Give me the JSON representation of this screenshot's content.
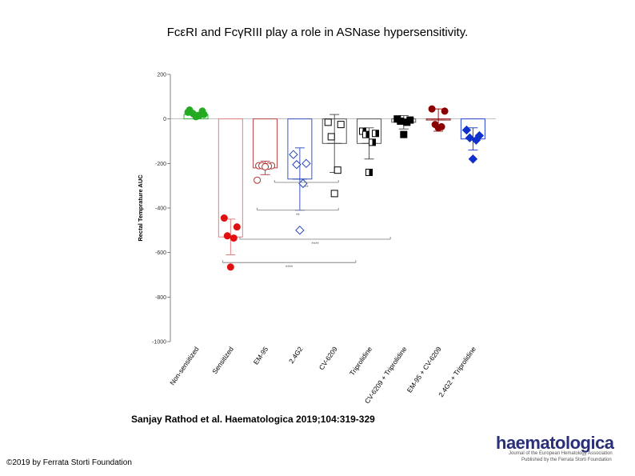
{
  "title": "FcεRI and FcγRIII play a role in ASNase hypersensitivity.",
  "citation": "Sanjay Rathod et al. Haematologica 2019;104:319-329",
  "copyright": "©2019 by Ferrata Storti Foundation",
  "logo": {
    "wordmark": "haematologica",
    "subtitle1": "Journal of the European Hematology Association",
    "subtitle2": "Published by the Ferrata Storti Foundation"
  },
  "chart_data": {
    "type": "scatter",
    "title": "",
    "xlabel": "",
    "ylabel": "Rectal Temprature AUC",
    "ylim": [
      -1000,
      200
    ],
    "yticks": [
      200,
      0,
      -200,
      -400,
      -600,
      -800,
      -1000
    ],
    "categories": [
      "Non-sensitized",
      "Sensitized",
      "EM-95",
      "2.4G2",
      "CV-6209",
      "Triprolidine",
      "CV-6209 + Triprolidine",
      "EM-95 + CV-6209",
      "2.4G2 + Triprolidine"
    ],
    "groups": [
      {
        "name": "Non-sensitized",
        "color": "#22aa22",
        "marker": "circle",
        "filled": true,
        "mean": 20,
        "err": 10,
        "points": [
          40,
          35,
          25,
          15,
          10,
          30,
          20
        ]
      },
      {
        "name": "Sensitized",
        "color": "#e01010",
        "marker": "circle",
        "filled": true,
        "mean": -530,
        "err": 80,
        "points": [
          -445,
          -485,
          -525,
          -535,
          -665
        ]
      },
      {
        "name": "EM-95",
        "color": "#b03030",
        "marker": "circle",
        "filled": false,
        "mean": -220,
        "err": 30,
        "points": [
          -210,
          -210,
          -210,
          -212,
          -215,
          -275
        ]
      },
      {
        "name": "2.4G2",
        "color": "#2244bb",
        "marker": "diamond",
        "filled": false,
        "mean": -270,
        "err": 140,
        "points": [
          -160,
          -200,
          -205,
          -290,
          -500
        ]
      },
      {
        "name": "CV-6209",
        "color": "#000000",
        "marker": "square",
        "filled": false,
        "mean": -110,
        "err": 130,
        "points": [
          -15,
          -25,
          -80,
          -230,
          -335
        ]
      },
      {
        "name": "Triprolidine",
        "color": "#000000",
        "marker": "square-half",
        "filled": true,
        "mean": -110,
        "err": 70,
        "points": [
          -55,
          -65,
          -70,
          -105,
          -240
        ]
      },
      {
        "name": "CV-6209 + Triprolidine",
        "color": "#000000",
        "marker": "square",
        "filled": true,
        "mean": -15,
        "err": 30,
        "points": [
          0,
          -5,
          -10,
          -15,
          -70
        ]
      },
      {
        "name": "EM-95 + CV-6209",
        "color": "#8b0000",
        "marker": "circle",
        "filled": true,
        "mean": -5,
        "err": 50,
        "points": [
          45,
          35,
          -25,
          -35,
          -40
        ]
      },
      {
        "name": "2.4G2 + Triprolidine",
        "color": "#1030cc",
        "marker": "diamond",
        "filled": true,
        "mean": -90,
        "err": 50,
        "points": [
          -50,
          -75,
          -85,
          -95,
          -180
        ]
      }
    ],
    "significance": [
      {
        "from": 5,
        "to": 8,
        "level": -285,
        "label": "**"
      },
      {
        "from": 4,
        "to": 8,
        "level": -410,
        "label": "**"
      },
      {
        "from": 3,
        "to": 11,
        "level": -540,
        "label": "****"
      },
      {
        "from": 2,
        "to": 9,
        "level": -645,
        "label": "****"
      }
    ],
    "grid": false,
    "legend": "none"
  }
}
